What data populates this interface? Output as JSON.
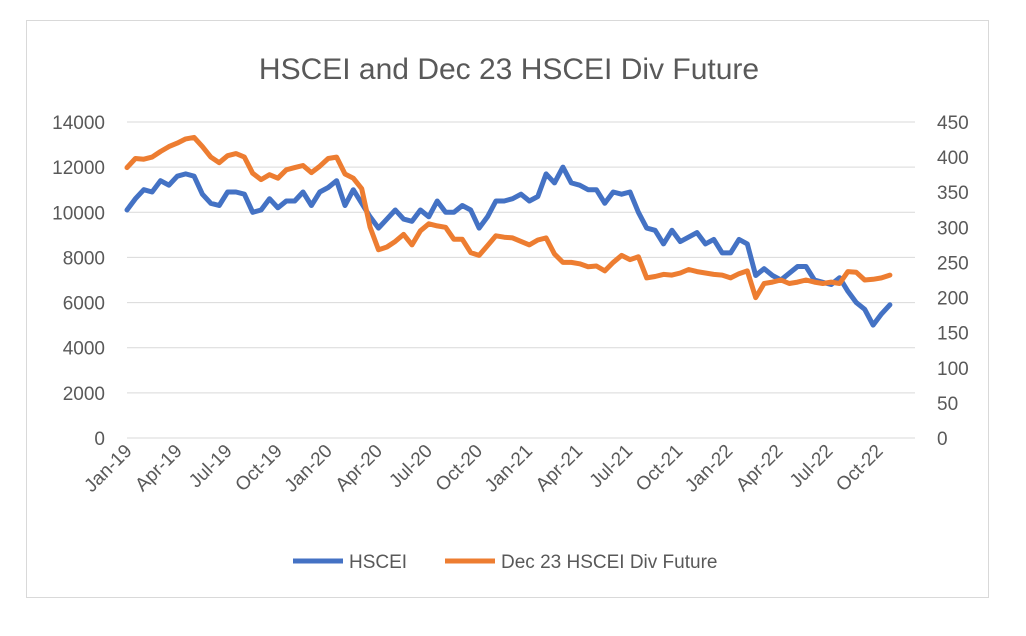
{
  "chart_data": {
    "type": "line",
    "title": "HSCEI and Dec 23 HSCEI Div Future",
    "xlabel": "",
    "ylabel": "",
    "x_tick_labels": [
      "Jan-19",
      "Apr-19",
      "Jul-19",
      "Oct-19",
      "Jan-20",
      "Apr-20",
      "Jul-20",
      "Oct-20",
      "Jan-21",
      "Apr-21",
      "Jul-21",
      "Oct-21",
      "Jan-22",
      "Apr-22",
      "Jul-22",
      "Oct-22"
    ],
    "y_left": {
      "ticks": [
        "14000",
        "12000",
        "10000",
        "8000",
        "6000",
        "4000",
        "2000",
        "0"
      ],
      "lim": [
        0,
        14000
      ]
    },
    "y_right": {
      "ticks": [
        "450",
        "400",
        "350",
        "300",
        "250",
        "200",
        "150",
        "100",
        "50",
        "0"
      ],
      "lim": [
        0,
        450
      ]
    },
    "x_range": [
      0,
      47
    ],
    "grid": "horizontal",
    "legend_position": "bottom",
    "series": [
      {
        "name": "HSCEI",
        "axis": "left",
        "color": "#4472C4",
        "points": [
          [
            0,
            10100
          ],
          [
            0.5,
            10600
          ],
          [
            1,
            11000
          ],
          [
            1.5,
            10900
          ],
          [
            2,
            11400
          ],
          [
            2.5,
            11200
          ],
          [
            3,
            11600
          ],
          [
            3.5,
            11700
          ],
          [
            4,
            11600
          ],
          [
            4.5,
            10800
          ],
          [
            5,
            10400
          ],
          [
            5.5,
            10300
          ],
          [
            6,
            10900
          ],
          [
            6.5,
            10900
          ],
          [
            7,
            10800
          ],
          [
            7.5,
            10000
          ],
          [
            8,
            10100
          ],
          [
            8.5,
            10600
          ],
          [
            9,
            10200
          ],
          [
            9.5,
            10500
          ],
          [
            10,
            10500
          ],
          [
            10.5,
            10900
          ],
          [
            11,
            10300
          ],
          [
            11.5,
            10900
          ],
          [
            12,
            11100
          ],
          [
            12.5,
            11400
          ],
          [
            13,
            10300
          ],
          [
            13.5,
            11000
          ],
          [
            14,
            10400
          ],
          [
            14.5,
            9800
          ],
          [
            15,
            9300
          ],
          [
            15.5,
            9700
          ],
          [
            16,
            10100
          ],
          [
            16.5,
            9700
          ],
          [
            17,
            9600
          ],
          [
            17.5,
            10100
          ],
          [
            18,
            9800
          ],
          [
            18.5,
            10500
          ],
          [
            19,
            10000
          ],
          [
            19.5,
            10000
          ],
          [
            20,
            10300
          ],
          [
            20.5,
            10100
          ],
          [
            21,
            9300
          ],
          [
            21.5,
            9800
          ],
          [
            22,
            10500
          ],
          [
            22.5,
            10500
          ],
          [
            23,
            10600
          ],
          [
            23.5,
            10800
          ],
          [
            24,
            10500
          ],
          [
            24.5,
            10700
          ],
          [
            25,
            11700
          ],
          [
            25.5,
            11300
          ],
          [
            26,
            12000
          ],
          [
            26.5,
            11300
          ],
          [
            27,
            11200
          ],
          [
            27.5,
            11000
          ],
          [
            28,
            11000
          ],
          [
            28.5,
            10400
          ],
          [
            29,
            10900
          ],
          [
            29.5,
            10800
          ],
          [
            30,
            10900
          ],
          [
            30.5,
            10000
          ],
          [
            31,
            9300
          ],
          [
            31.5,
            9200
          ],
          [
            32,
            8600
          ],
          [
            32.5,
            9200
          ],
          [
            33,
            8700
          ],
          [
            33.5,
            8900
          ],
          [
            34,
            9100
          ],
          [
            34.5,
            8600
          ],
          [
            35,
            8800
          ],
          [
            35.5,
            8200
          ],
          [
            36,
            8200
          ],
          [
            36.5,
            8800
          ],
          [
            37,
            8600
          ],
          [
            37.5,
            7200
          ],
          [
            38,
            7500
          ],
          [
            38.5,
            7200
          ],
          [
            39,
            7000
          ],
          [
            39.5,
            7300
          ],
          [
            40,
            7600
          ],
          [
            40.5,
            7600
          ],
          [
            41,
            7000
          ],
          [
            41.5,
            6900
          ],
          [
            42,
            6800
          ],
          [
            42.5,
            7100
          ],
          [
            43,
            6500
          ],
          [
            43.5,
            6000
          ],
          [
            44,
            5700
          ],
          [
            44.5,
            5000
          ],
          [
            45,
            5500
          ],
          [
            45.5,
            5900
          ]
        ]
      },
      {
        "name": "Dec 23 HSCEI Div Future",
        "axis": "right",
        "color": "#ED7D31",
        "points": [
          [
            0,
            385
          ],
          [
            0.5,
            398
          ],
          [
            1,
            397
          ],
          [
            1.5,
            400
          ],
          [
            2,
            408
          ],
          [
            2.5,
            415
          ],
          [
            3,
            420
          ],
          [
            3.5,
            426
          ],
          [
            4,
            428
          ],
          [
            4.5,
            415
          ],
          [
            5,
            400
          ],
          [
            5.5,
            392
          ],
          [
            6,
            402
          ],
          [
            6.5,
            405
          ],
          [
            7,
            400
          ],
          [
            7.5,
            377
          ],
          [
            8,
            368
          ],
          [
            8.5,
            375
          ],
          [
            9,
            370
          ],
          [
            9.5,
            382
          ],
          [
            10,
            385
          ],
          [
            10.5,
            388
          ],
          [
            11,
            378
          ],
          [
            11.5,
            387
          ],
          [
            12,
            398
          ],
          [
            12.5,
            400
          ],
          [
            13,
            376
          ],
          [
            13.5,
            370
          ],
          [
            14,
            355
          ],
          [
            14.5,
            300
          ],
          [
            15,
            268
          ],
          [
            15.5,
            272
          ],
          [
            16,
            280
          ],
          [
            16.5,
            290
          ],
          [
            17,
            275
          ],
          [
            17.5,
            295
          ],
          [
            18,
            305
          ],
          [
            18.5,
            302
          ],
          [
            19,
            300
          ],
          [
            19.5,
            283
          ],
          [
            20,
            283
          ],
          [
            20.5,
            264
          ],
          [
            21,
            260
          ],
          [
            21.5,
            274
          ],
          [
            22,
            288
          ],
          [
            22.5,
            286
          ],
          [
            23,
            285
          ],
          [
            23.5,
            280
          ],
          [
            24,
            275
          ],
          [
            24.5,
            282
          ],
          [
            25,
            285
          ],
          [
            25.5,
            262
          ],
          [
            26,
            250
          ],
          [
            26.5,
            250
          ],
          [
            27,
            248
          ],
          [
            27.5,
            244
          ],
          [
            28,
            245
          ],
          [
            28.5,
            238
          ],
          [
            29,
            250
          ],
          [
            29.5,
            260
          ],
          [
            30,
            254
          ],
          [
            30.5,
            258
          ],
          [
            31,
            228
          ],
          [
            31.5,
            230
          ],
          [
            32,
            233
          ],
          [
            32.5,
            232
          ],
          [
            33,
            235
          ],
          [
            33.5,
            240
          ],
          [
            34,
            237
          ],
          [
            34.5,
            235
          ],
          [
            35,
            233
          ],
          [
            35.5,
            232
          ],
          [
            36,
            228
          ],
          [
            36.5,
            234
          ],
          [
            37,
            238
          ],
          [
            37.5,
            200
          ],
          [
            38,
            220
          ],
          [
            38.5,
            222
          ],
          [
            39,
            225
          ],
          [
            39.5,
            220
          ],
          [
            40,
            222
          ],
          [
            40.5,
            225
          ],
          [
            41,
            222
          ],
          [
            41.5,
            220
          ],
          [
            42,
            222
          ],
          [
            42.5,
            220
          ],
          [
            43,
            237
          ],
          [
            43.5,
            236
          ],
          [
            44,
            225
          ],
          [
            44.5,
            226
          ],
          [
            45,
            228
          ],
          [
            45.5,
            232
          ]
        ]
      }
    ]
  }
}
